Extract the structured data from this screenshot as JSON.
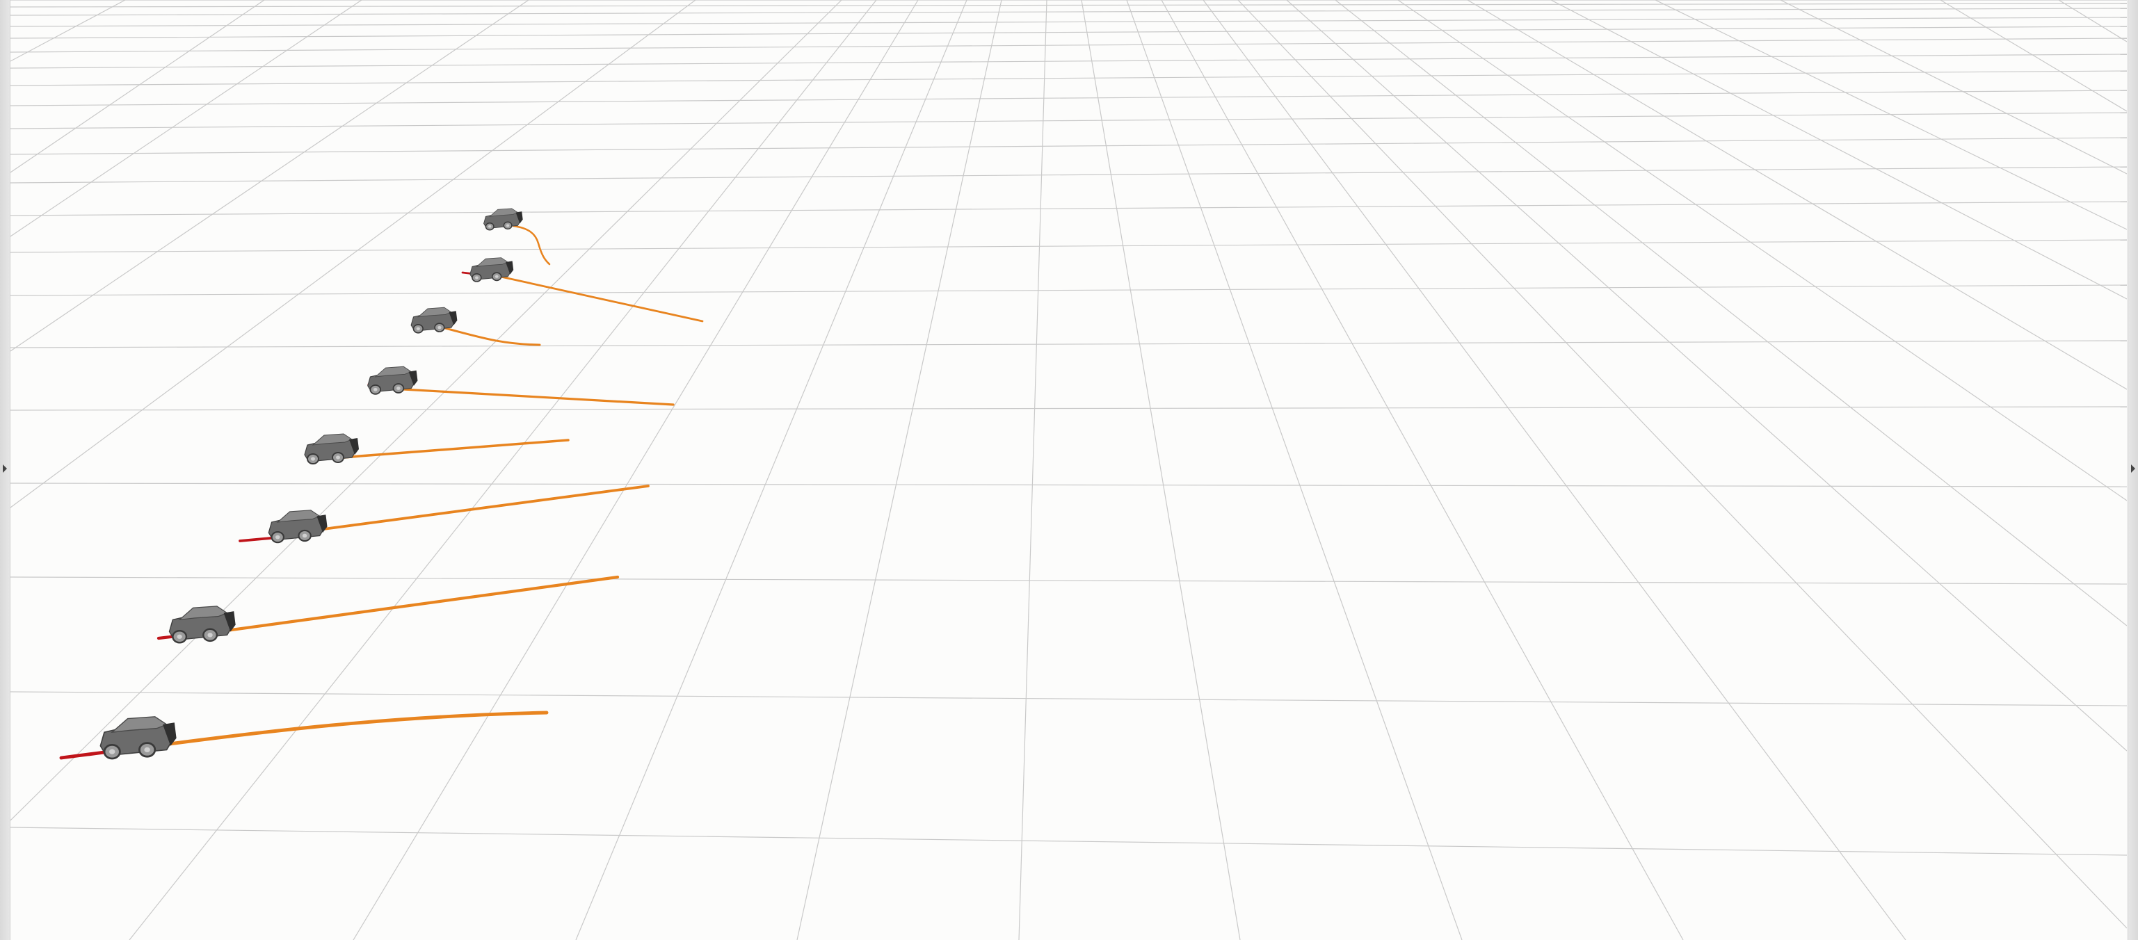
{
  "viewport": {
    "background": "#fcfcfb",
    "grid_color": "#c9c9c9",
    "trajectory_future_color": "#e8841f",
    "trajectory_past_color": "#c0141a",
    "vehicle_color": "#6b6b6b",
    "vehicle_count": 8
  },
  "left_panel_toggle": {
    "icon": "triangle-right-icon"
  },
  "right_panel_toggle": {
    "icon": "triangle-right-icon"
  }
}
